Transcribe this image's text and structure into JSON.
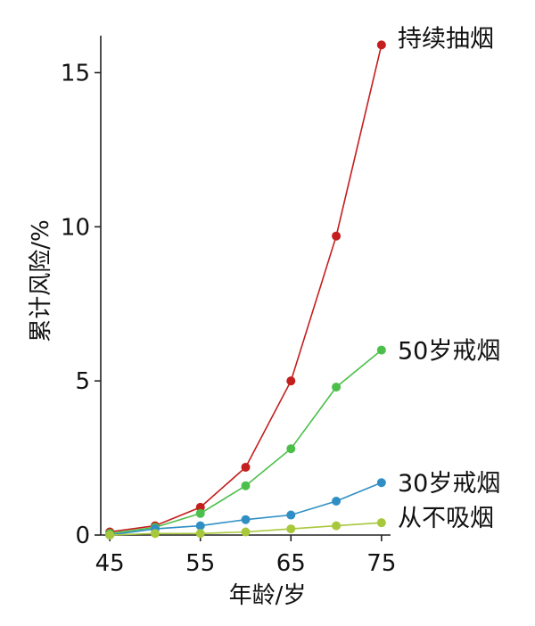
{
  "chart_data": {
    "type": "line",
    "xlabel": "年龄/岁",
    "ylabel": "累计风险/%",
    "x": [
      45,
      50,
      55,
      60,
      65,
      70,
      75
    ],
    "xlim": [
      44,
      76
    ],
    "ylim": [
      0,
      16.2
    ],
    "xticks": [
      "45",
      "55",
      "65",
      "75"
    ],
    "yticks": [
      "0",
      "5",
      "10",
      "15"
    ],
    "grid": false,
    "legend": "labels at line ends, right",
    "series": [
      {
        "name": "持续抽烟",
        "color": "#c41e1e",
        "values": [
          0.1,
          0.3,
          0.9,
          2.2,
          5.0,
          9.7,
          15.9
        ]
      },
      {
        "name": "50岁戒烟",
        "color": "#4cbf4a",
        "values": [
          0.05,
          0.25,
          0.7,
          1.6,
          2.8,
          4.8,
          6.0
        ]
      },
      {
        "name": "30岁戒烟",
        "color": "#2f8fc4",
        "values": [
          0.0,
          0.2,
          0.3,
          0.5,
          0.65,
          1.1,
          1.7
        ]
      },
      {
        "name": "从不吸烟",
        "color": "#a8c83c",
        "values": [
          0.0,
          0.05,
          0.05,
          0.1,
          0.2,
          0.3,
          0.4
        ]
      }
    ]
  }
}
